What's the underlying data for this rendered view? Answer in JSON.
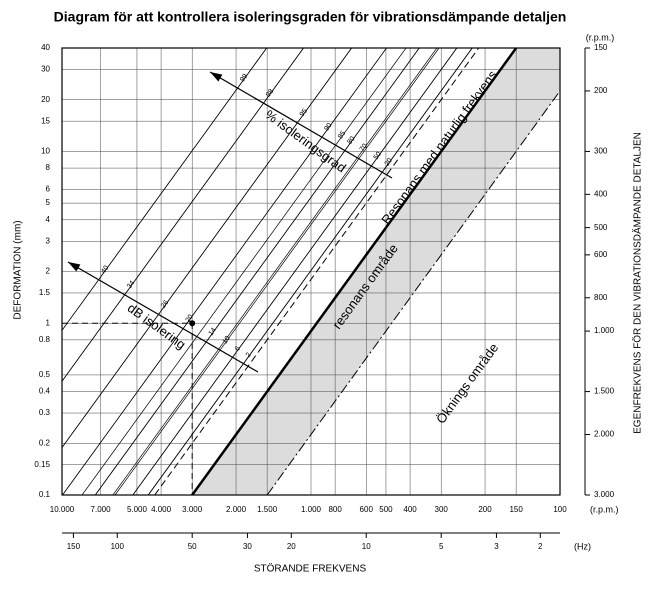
{
  "chart_data": {
    "type": "nomogram",
    "title": "Diagram för att kontrollera isoleringsgraden för vibrationsdämpande detaljen",
    "ylabel": "DEFORMATION (mm)",
    "y2label": "EGENFREKVENS FÖR DEN VIBRATIONSDÄMPANDE DETALJEN",
    "xlabel": "STÖRANDE FREKVENS",
    "log": true,
    "grid": true,
    "ylim": [
      0.1,
      40
    ],
    "yticks": [
      0.1,
      0.15,
      0.2,
      0.3,
      0.4,
      0.5,
      0.8,
      1,
      1.5,
      2,
      3,
      4,
      5,
      6,
      8,
      10,
      15,
      20,
      30,
      40
    ],
    "y2lim": [
      3000,
      150
    ],
    "y2unit": "(r.p.m.)",
    "y2ticks": [
      150,
      200,
      300,
      400,
      500,
      600,
      800,
      {
        "value": 1000,
        "label": "1.000"
      },
      {
        "value": 1500,
        "label": "1.500"
      },
      {
        "value": 2000,
        "label": "2.000"
      },
      {
        "value": 3000,
        "label": "3.000"
      }
    ],
    "xlim": [
      10000,
      100
    ],
    "xunit": "(r.p.m.)",
    "xticks": [
      {
        "value": 10000,
        "label": "10.000"
      },
      {
        "value": 7000,
        "label": "7.000"
      },
      {
        "value": 5000,
        "label": "5.000"
      },
      {
        "value": 4000,
        "label": "4.000"
      },
      {
        "value": 3000,
        "label": "3.000"
      },
      {
        "value": 2000,
        "label": "2.000"
      },
      {
        "value": 1500,
        "label": "1.500"
      },
      {
        "value": 1000,
        "label": "1.000"
      },
      800,
      600,
      500,
      400,
      300,
      200,
      150,
      100
    ],
    "x2lim": [
      166.67,
      1.6667
    ],
    "x2unit": "(Hz)",
    "x2ticks": [
      150,
      100,
      50,
      30,
      20,
      10,
      5,
      3,
      2
    ],
    "isolation_percent": {
      "label": "% isoleringsgrad",
      "values": [
        99,
        98,
        95,
        90,
        85,
        80,
        70,
        50,
        20
      ]
    },
    "isolation_db": {
      "label": "dB isolering",
      "values": [
        40,
        34,
        26,
        20,
        14,
        10,
        6,
        2
      ]
    },
    "annotations": [
      "Resonans med naturlig frekvens",
      "resonans område",
      "Öknings område"
    ],
    "example": {
      "x": 3000,
      "y": 1
    },
    "shade_color": "#dcdcdc",
    "line_color": "#000000"
  }
}
